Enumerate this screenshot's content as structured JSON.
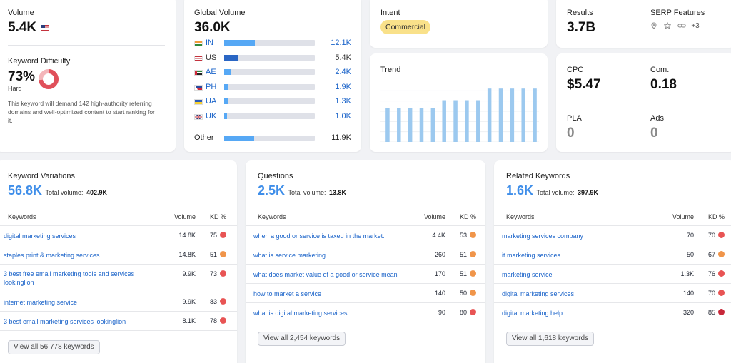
{
  "volume": {
    "label": "Volume",
    "value": "5.4K",
    "flag_icon": "us-flag-icon"
  },
  "kd": {
    "label": "Keyword Difficulty",
    "percent_text": "73%",
    "percent": 73,
    "level": "Hard",
    "description": "This keyword will demand 142 high-authority referring domains and well-optimized content to start ranking for it.",
    "color": "#e0505a"
  },
  "global_volume": {
    "label": "Global Volume",
    "value": "36.0K",
    "countries": [
      {
        "code": "IN",
        "value": "12.1K",
        "share": 0.34,
        "link": true,
        "flag_icon": "india-flag-icon"
      },
      {
        "code": "US",
        "value": "5.4K",
        "share": 0.15,
        "link": false,
        "flag_icon": "us-flag-icon"
      },
      {
        "code": "AE",
        "value": "2.4K",
        "share": 0.07,
        "link": true,
        "flag_icon": "uae-flag-icon"
      },
      {
        "code": "PH",
        "value": "1.9K",
        "share": 0.05,
        "link": true,
        "flag_icon": "philippines-flag-icon"
      },
      {
        "code": "UA",
        "value": "1.3K",
        "share": 0.04,
        "link": true,
        "flag_icon": "ukraine-flag-icon"
      },
      {
        "code": "UK",
        "value": "1.0K",
        "share": 0.03,
        "link": true,
        "flag_icon": "uk-flag-icon"
      }
    ],
    "other": {
      "label": "Other",
      "value": "11.9K",
      "share": 0.33
    }
  },
  "intent": {
    "label": "Intent",
    "badge": "Commercial",
    "badge_color": "#f9e18a"
  },
  "results": {
    "label": "Results",
    "value": "3.7B"
  },
  "serp": {
    "label": "SERP Features",
    "more": "+3",
    "icons": [
      "location-pin-icon",
      "star-icon",
      "link-icon"
    ]
  },
  "trend": {
    "label": "Trend",
    "bar_color": "#9cc9ef",
    "values": [
      0.55,
      0.55,
      0.55,
      0.55,
      0.55,
      0.68,
      0.68,
      0.68,
      0.68,
      0.87,
      0.87,
      0.87,
      0.87,
      0.87
    ]
  },
  "cpc": {
    "label": "CPC",
    "value": "$5.47"
  },
  "com": {
    "label": "Com.",
    "value": "0.18"
  },
  "pla": {
    "label": "PLA",
    "value": "0"
  },
  "ads": {
    "label": "Ads",
    "value": "0"
  },
  "columns": {
    "keywords": "Keywords",
    "volume": "Volume",
    "kd": "KD %"
  },
  "variations": {
    "title": "Keyword Variations",
    "count": "56.8K",
    "total_label": "Total volume:",
    "total": "402.9K",
    "rows": [
      {
        "kw": "digital marketing services",
        "vol": "14.8K",
        "kd": "75",
        "color": "#e85454"
      },
      {
        "kw": "staples print & marketing services",
        "vol": "14.8K",
        "kd": "51",
        "color": "#f0954a"
      },
      {
        "kw": "3 best free email marketing tools and services lookinglion",
        "vol": "9.9K",
        "kd": "73",
        "color": "#e85454"
      },
      {
        "kw": "internet marketing service",
        "vol": "9.9K",
        "kd": "83",
        "color": "#e85454"
      },
      {
        "kw": "3 best email marketing services lookinglion",
        "vol": "8.1K",
        "kd": "78",
        "color": "#e85454"
      }
    ],
    "button": "View all 56,778 keywords"
  },
  "questions": {
    "title": "Questions",
    "count": "2.5K",
    "total_label": "Total volume:",
    "total": "13.8K",
    "rows": [
      {
        "kw": "when a good or service is taxed in the market:",
        "vol": "4.4K",
        "kd": "53",
        "color": "#f0954a"
      },
      {
        "kw": "what is service marketing",
        "vol": "260",
        "kd": "51",
        "color": "#f0954a"
      },
      {
        "kw": "what does market value of a good or service mean",
        "vol": "170",
        "kd": "51",
        "color": "#f0954a"
      },
      {
        "kw": "how to market a service",
        "vol": "140",
        "kd": "50",
        "color": "#f0954a"
      },
      {
        "kw": "what is digital marketing services",
        "vol": "90",
        "kd": "80",
        "color": "#e85454"
      }
    ],
    "button": "View all 2,454 keywords"
  },
  "related": {
    "title": "Related Keywords",
    "count": "1.6K",
    "total_label": "Total volume:",
    "total": "397.9K",
    "rows": [
      {
        "kw": "marketing services company",
        "vol": "70",
        "kd": "70",
        "color": "#e85454"
      },
      {
        "kw": "it marketing services",
        "vol": "50",
        "kd": "67",
        "color": "#f0954a"
      },
      {
        "kw": "marketing service",
        "vol": "1.3K",
        "kd": "76",
        "color": "#e85454"
      },
      {
        "kw": "digital marketing services",
        "vol": "140",
        "kd": "70",
        "color": "#e85454"
      },
      {
        "kw": "digital marketing help",
        "vol": "320",
        "kd": "85",
        "color": "#c8283a"
      }
    ],
    "button": "View all 1,618 keywords"
  }
}
